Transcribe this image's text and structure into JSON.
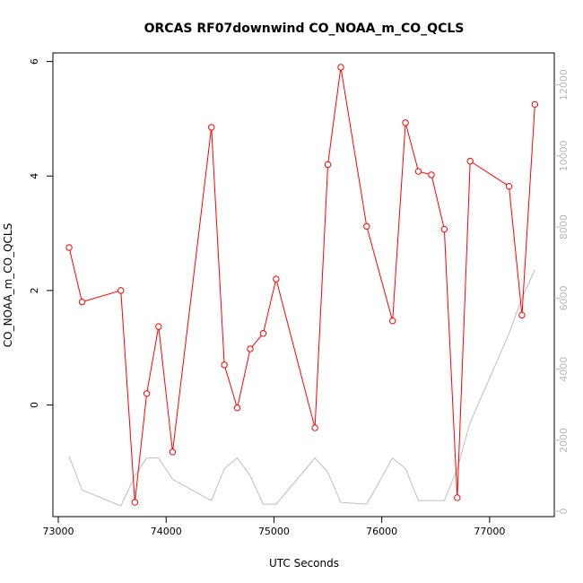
{
  "chart_data": {
    "type": "line",
    "title": "ORCAS RF07downwind CO_NOAA_m_CO_QCLS",
    "xlabel": "UTC Seconds",
    "ylabel": "CO_NOAA_m_CO_QCLS",
    "xlim": [
      72950,
      77600
    ],
    "ylim": [
      -1.95,
      6.15
    ],
    "y2lim": [
      -150,
      12900
    ],
    "xticks": [
      73000,
      74000,
      75000,
      76000,
      77000
    ],
    "yticks": [
      0,
      2,
      4,
      6
    ],
    "y2ticks": [
      0,
      2000,
      4000,
      6000,
      8000,
      10000,
      12000
    ],
    "grid": false,
    "legend": "none",
    "colors": {
      "primary": "#ff0000",
      "secondary": "#bebebe"
    },
    "series": [
      {
        "axis": "left",
        "marker": "open-circle",
        "x": [
          73100,
          73220,
          73580,
          73710,
          73820,
          73930,
          74060,
          74420,
          74540,
          74660,
          74780,
          74900,
          75020,
          75380,
          75500,
          75620,
          75860,
          76100,
          76220,
          76340,
          76460,
          76580,
          76700,
          76820,
          77180,
          77300,
          77420
        ],
        "values": [
          2.75,
          1.8,
          2.0,
          -1.7,
          0.2,
          1.37,
          -0.82,
          4.85,
          0.7,
          -0.05,
          0.98,
          1.25,
          2.2,
          -0.4,
          4.2,
          5.9,
          3.12,
          1.47,
          4.93,
          4.08,
          4.02,
          3.07,
          -1.62,
          4.26,
          3.82,
          1.57,
          5.25
        ]
      },
      {
        "axis": "right",
        "x": [
          73100,
          73220,
          73580,
          73710,
          73820,
          73930,
          74060,
          74420,
          74540,
          74660,
          74780,
          74900,
          75020,
          75380,
          75500,
          75620,
          75860,
          76100,
          76220,
          76340,
          76460,
          76580,
          76700,
          76820,
          77180,
          77300,
          77420
        ],
        "values": [
          1550,
          600,
          150,
          1000,
          1500,
          1500,
          900,
          300,
          1200,
          1500,
          1000,
          200,
          200,
          1500,
          1100,
          250,
          200,
          1500,
          1200,
          300,
          300,
          300,
          1200,
          2500,
          5000,
          6000,
          6800
        ]
      }
    ]
  }
}
